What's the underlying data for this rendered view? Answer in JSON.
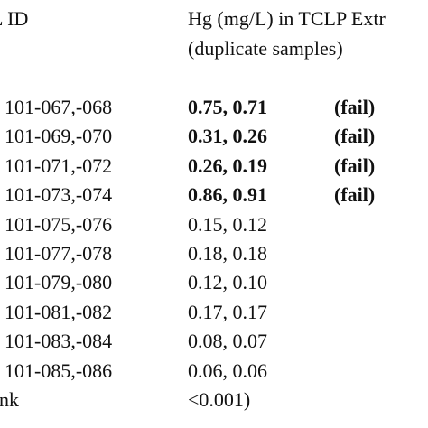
{
  "header": {
    "id": "L ID",
    "measure": [
      "Hg (mg/L) in TCLP Extr",
      "(duplicate samples)"
    ]
  },
  "rows": [
    {
      "id": "101-067,-068",
      "value": "0.75, 0.71",
      "status": "(fail)"
    },
    {
      "id": "101-069,-070",
      "value": "0.31, 0.26",
      "status": "(fail)"
    },
    {
      "id": "101-071,-072",
      "value": "0.26, 0.19",
      "status": "(fail)"
    },
    {
      "id": "101-073,-074",
      "value": "0.86, 0.91",
      "status": "(fail)"
    },
    {
      "id": "101-075,-076",
      "value": "0.15, 0.12"
    },
    {
      "id": "101-077,-078",
      "value": "0.18, 0.18"
    },
    {
      "id": "101-079,-080",
      "value": "0.12, 0.10"
    },
    {
      "id": "101-081,-082",
      "value": "0.17, 0.17"
    },
    {
      "id": "101-083,-084",
      "value": "0.08, 0.07"
    },
    {
      "id": "101-085,-086",
      "value": "0.06, 0.06"
    },
    {
      "id": "nk",
      "value": "<0.001)"
    }
  ]
}
